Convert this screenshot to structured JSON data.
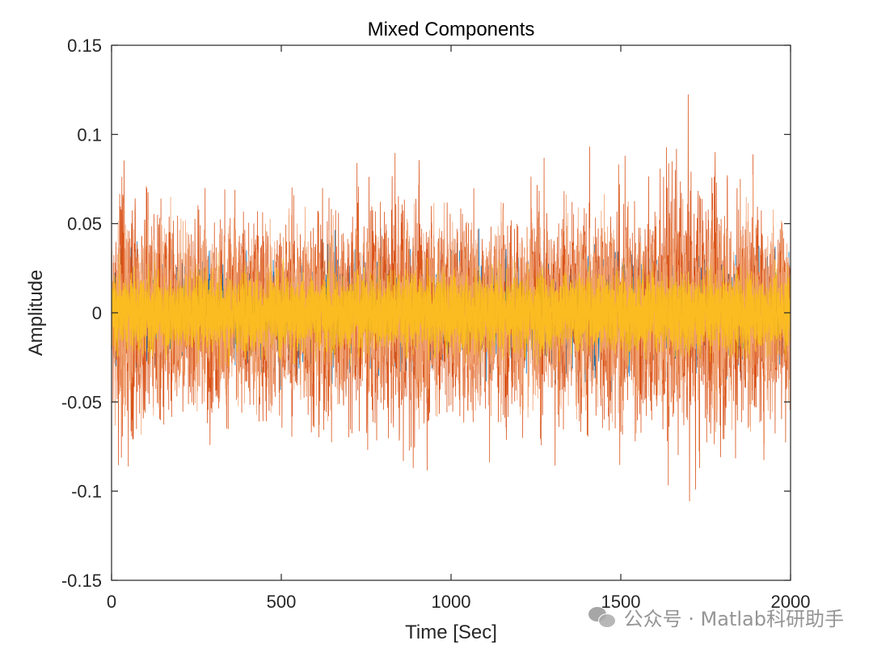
{
  "chart_data": {
    "type": "line",
    "title": "Mixed Components",
    "xlabel": "Time [Sec]",
    "ylabel": "Amplitude",
    "xlim": [
      0,
      2000
    ],
    "ylim": [
      -0.15,
      0.15
    ],
    "xticks": [
      0,
      500,
      1000,
      1500,
      2000
    ],
    "xtick_labels": [
      "0",
      "500",
      "1000",
      "1500",
      "2000"
    ],
    "yticks": [
      -0.15,
      -0.1,
      -0.05,
      0,
      0.05,
      0.1,
      0.15
    ],
    "ytick_labels": [
      "-0.15",
      "-0.1",
      "-0.05",
      "0",
      "0.05",
      "0.1",
      "0.15"
    ],
    "grid": false,
    "series": [
      {
        "color": "#0072BD",
        "amplitude": 0.06,
        "envelope": [
          [
            0,
            0.055
          ],
          [
            200,
            0.05
          ],
          [
            500,
            0.05
          ],
          [
            900,
            0.06
          ],
          [
            1200,
            0.05
          ],
          [
            1500,
            0.058
          ],
          [
            2000,
            0.05
          ]
        ]
      },
      {
        "color": "#D95319",
        "amplitude": 0.14,
        "envelope": [
          [
            0,
            0.1
          ],
          [
            50,
            0.14
          ],
          [
            200,
            0.1
          ],
          [
            500,
            0.1
          ],
          [
            900,
            0.125
          ],
          [
            1000,
            0.1
          ],
          [
            1200,
            0.095
          ],
          [
            1500,
            0.12
          ],
          [
            1700,
            0.14
          ],
          [
            2000,
            0.1
          ]
        ]
      },
      {
        "color": "#F0A070",
        "amplitude": 0.1,
        "envelope": [
          [
            0,
            0.09
          ],
          [
            500,
            0.08
          ],
          [
            1000,
            0.09
          ],
          [
            1500,
            0.09
          ],
          [
            2000,
            0.09
          ]
        ]
      },
      {
        "color": "#EDB120",
        "amplitude": 0.04,
        "envelope": [
          [
            0,
            0.04
          ],
          [
            500,
            0.038
          ],
          [
            1000,
            0.04
          ],
          [
            1500,
            0.04
          ],
          [
            2000,
            0.04
          ]
        ]
      },
      {
        "color": "#FBBC22",
        "amplitude": 0.035,
        "envelope": [
          [
            0,
            0.035
          ],
          [
            2000,
            0.035
          ]
        ]
      }
    ]
  },
  "watermark": {
    "text": "公众号 · Matlab科研助手",
    "icon": "wechat-icon"
  }
}
